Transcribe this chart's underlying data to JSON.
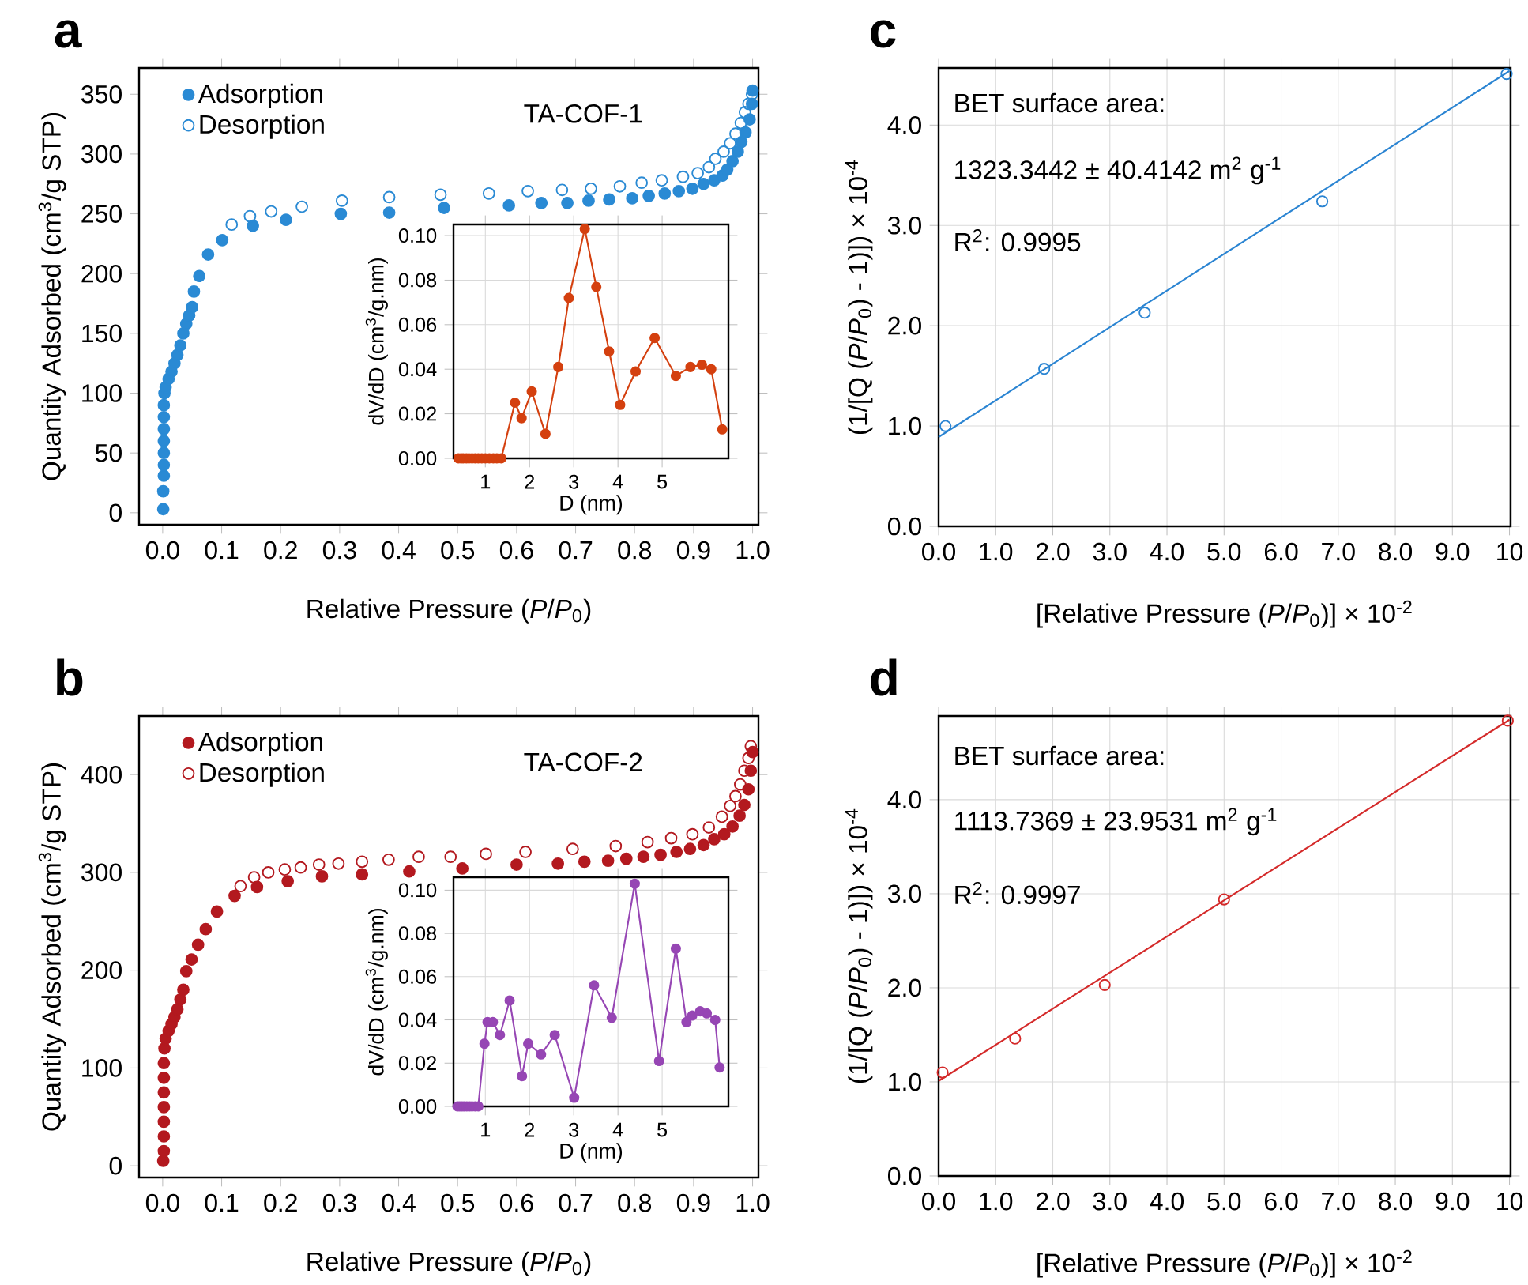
{
  "chart_data": [
    {
      "type": "scatter",
      "title": "a",
      "xlabel": "Relative Pressure (*P*/*P*$_{0}$)",
      "ylabel": "Quantity Adsorbed (cm$^{3}$/g STP)",
      "annotations": [
        "TA-COF-1"
      ],
      "xlim": [
        -0.04,
        1.01
      ],
      "ylim": [
        -10,
        372
      ],
      "xticks": [
        {
          "value": 0,
          "label": "0.0"
        },
        {
          "value": 0.1,
          "label": "0.1"
        },
        {
          "value": 0.2,
          "label": "0.2"
        },
        {
          "value": 0.3,
          "label": "0.3"
        },
        {
          "value": 0.4,
          "label": "0.4"
        },
        {
          "value": 0.5,
          "label": "0.5"
        },
        {
          "value": 0.6,
          "label": "0.6"
        },
        {
          "value": 0.7,
          "label": "0.7"
        },
        {
          "value": 0.8,
          "label": "0.8"
        },
        {
          "value": 0.9,
          "label": "0.9"
        },
        {
          "value": 1,
          "label": "1.0"
        }
      ],
      "yticks": [
        0,
        50,
        100,
        150,
        200,
        250,
        300,
        350
      ],
      "legend": "top left",
      "marker": "circle",
      "series": [
        {
          "name": "Adsorption",
          "color": "#2a8ad4",
          "x": [
            0.001,
            0.001,
            0.002,
            0.002,
            0.002,
            0.002,
            0.002,
            0.002,
            0.002,
            0.003,
            0.005,
            0.01,
            0.015,
            0.02,
            0.025,
            0.03,
            0.035,
            0.04,
            0.045,
            0.05,
            0.053,
            0.062,
            0.077,
            0.101,
            0.153,
            0.209,
            0.302,
            0.384,
            0.477,
            0.587,
            0.642,
            0.686,
            0.722,
            0.757,
            0.796,
            0.824,
            0.851,
            0.875,
            0.898,
            0.917,
            0.935,
            0.949,
            0.957,
            0.966,
            0.975,
            0.981,
            0.988,
            0.995,
            0.999,
            1.0
          ],
          "values": [
            3,
            18,
            31,
            40,
            50,
            60,
            70,
            80,
            90,
            100,
            105,
            112,
            118,
            125,
            132,
            140,
            150,
            158,
            165,
            172,
            185,
            198,
            216,
            228,
            240,
            245,
            250,
            251,
            255,
            257,
            259,
            259,
            261,
            262,
            263,
            265,
            267,
            269,
            271,
            275,
            278,
            282,
            287,
            294,
            302,
            310,
            318,
            329,
            342,
            353
          ]
        },
        {
          "name": "Desorption",
          "color": "#2a8ad4",
          "marker": "open circle",
          "x": [
            0.999,
            0.993,
            0.987,
            0.98,
            0.971,
            0.962,
            0.951,
            0.937,
            0.926,
            0.907,
            0.882,
            0.846,
            0.812,
            0.775,
            0.726,
            0.677,
            0.619,
            0.553,
            0.471,
            0.384,
            0.304,
            0.236,
            0.184,
            0.148,
            0.117
          ],
          "values": [
            350,
            342,
            335,
            326,
            317,
            309,
            302,
            296,
            289,
            284,
            281,
            278,
            276,
            273,
            271,
            270,
            269,
            267,
            266,
            264,
            261,
            256,
            252,
            248,
            241
          ]
        }
      ]
    },
    {
      "type": "line",
      "marker": "circle",
      "line_style": "solid",
      "xlabel": "D (nm)",
      "ylabel": "dV/dD (cm$^{3}$/g.nm)",
      "xlim": [
        0.28,
        6.5
      ],
      "ylim": [
        0,
        0.105
      ],
      "xticks": [
        1,
        2,
        3,
        4,
        5
      ],
      "yticks": [
        {
          "value": 0,
          "label": "0.00"
        },
        {
          "value": 0.02,
          "label": "0.02"
        },
        {
          "value": 0.04,
          "label": "0.04"
        },
        {
          "value": 0.06,
          "label": "0.06"
        },
        {
          "value": 0.08,
          "label": "0.08"
        },
        {
          "value": 0.1,
          "label": "0.10"
        }
      ],
      "grid": true,
      "series": [
        {
          "color": "#d4400f",
          "x": [
            0.39,
            0.45,
            0.5,
            0.57,
            0.63,
            0.7,
            0.77,
            0.84,
            0.92,
            1.0,
            1.09,
            1.18,
            1.26,
            1.36,
            1.67,
            1.82,
            2.05,
            2.36,
            2.65,
            2.89,
            3.25,
            3.51,
            3.8,
            4.05,
            4.4,
            4.83,
            5.31,
            5.64,
            5.9,
            6.11,
            6.36
          ],
          "values": [
            0,
            0,
            0,
            0,
            0,
            0,
            0,
            0,
            0,
            0,
            0,
            0,
            0,
            0,
            0.025,
            0.018,
            0.03,
            0.011,
            0.041,
            0.072,
            0.103,
            0.077,
            0.048,
            0.024,
            0.039,
            0.054,
            0.037,
            0.041,
            0.042,
            0.04,
            0.013
          ]
        }
      ]
    },
    {
      "type": "scatter",
      "title": "c",
      "xlabel": "[Relative Pressure (*P*/*P*$_{0}$)] × 10$^{-2}$",
      "ylabel": "(1/[Q (*P*/*P*$_{0}$) - 1)]) × 10$^{-4}$",
      "annotations": [
        "BET surface area:",
        "1323.3442 ± 40.4142 m$^{2}$ g$^{-1}$",
        "R$^{2}$: 0.9995"
      ],
      "xlim": [
        0,
        10.02
      ],
      "ylim": [
        0,
        4.57
      ],
      "xticks": [
        {
          "value": 0,
          "label": "0.0"
        },
        {
          "value": 1,
          "label": "1.0"
        },
        {
          "value": 2,
          "label": "2.0"
        },
        {
          "value": 3,
          "label": "3.0"
        },
        {
          "value": 4,
          "label": "4.0"
        },
        {
          "value": 5,
          "label": "5.0"
        },
        {
          "value": 6,
          "label": "6.0"
        },
        {
          "value": 7,
          "label": "7.0"
        },
        {
          "value": 8,
          "label": "8.0"
        },
        {
          "value": 9,
          "label": "9.0"
        },
        10
      ],
      "yticks": [
        {
          "value": 0,
          "label": "0.0"
        },
        {
          "value": 1,
          "label": "1.0"
        },
        {
          "value": 2,
          "label": "2.0"
        },
        {
          "value": 3,
          "label": "3.0"
        },
        {
          "value": 4,
          "label": "4.0"
        }
      ],
      "grid": true,
      "marker": "open circle",
      "series": [
        {
          "color": "#2a84d2",
          "x": [
            0.12,
            1.85,
            3.61,
            6.72,
            9.95
          ],
          "values": [
            1.0,
            1.57,
            2.13,
            3.24,
            4.51
          ]
        },
        {
          "type": "line",
          "marker": "none",
          "line_style": "solid",
          "color": "#2a84d2",
          "x": [
            0,
            10
          ],
          "values": [
            0.89,
            4.54
          ]
        }
      ]
    },
    {
      "type": "scatter",
      "title": "b",
      "xlabel": "Relative Pressure (*P*/*P*$_{0}$)",
      "ylabel": "Quantity Adsorbed (cm$^{3}$/g STP)",
      "annotations": [
        "TA-COF-2"
      ],
      "xlim": [
        -0.04,
        1.01
      ],
      "ylim": [
        -12,
        460
      ],
      "xticks": [
        {
          "value": 0,
          "label": "0.0"
        },
        {
          "value": 0.1,
          "label": "0.1"
        },
        {
          "value": 0.2,
          "label": "0.2"
        },
        {
          "value": 0.3,
          "label": "0.3"
        },
        {
          "value": 0.4,
          "label": "0.4"
        },
        {
          "value": 0.5,
          "label": "0.5"
        },
        {
          "value": 0.6,
          "label": "0.6"
        },
        {
          "value": 0.7,
          "label": "0.7"
        },
        {
          "value": 0.8,
          "label": "0.8"
        },
        {
          "value": 0.9,
          "label": "0.9"
        },
        {
          "value": 1,
          "label": "1.0"
        }
      ],
      "yticks": [
        0,
        100,
        200,
        300,
        400
      ],
      "legend": "top left",
      "marker": "circle",
      "series": [
        {
          "name": "Adsorption",
          "color": "#b3191f",
          "x": [
            0.001,
            0.002,
            0.002,
            0.002,
            0.002,
            0.002,
            0.002,
            0.002,
            0.003,
            0.005,
            0.01,
            0.015,
            0.02,
            0.025,
            0.03,
            0.035,
            0.04,
            0.049,
            0.06,
            0.073,
            0.092,
            0.122,
            0.16,
            0.212,
            0.27,
            0.338,
            0.418,
            0.508,
            0.6,
            0.67,
            0.715,
            0.755,
            0.786,
            0.815,
            0.844,
            0.871,
            0.894,
            0.917,
            0.935,
            0.952,
            0.966,
            0.978,
            0.986,
            0.993,
            0.997,
            1.0
          ],
          "values": [
            5,
            15,
            30,
            45,
            60,
            75,
            90,
            105,
            120,
            130,
            138,
            145,
            152,
            160,
            170,
            180,
            199,
            211,
            226,
            242,
            260,
            276,
            285,
            291,
            296,
            298,
            301,
            304,
            308,
            309,
            311,
            312,
            314,
            316,
            318,
            321,
            324,
            328,
            334,
            339,
            347,
            358,
            369,
            385,
            404,
            423
          ]
        },
        {
          "name": "Desorption",
          "color": "#b3191f",
          "marker": "open circle",
          "x": [
            0.997,
            0.993,
            0.986,
            0.979,
            0.971,
            0.962,
            0.948,
            0.926,
            0.898,
            0.862,
            0.822,
            0.768,
            0.695,
            0.615,
            0.548,
            0.488,
            0.434,
            0.383,
            0.338,
            0.298,
            0.265,
            0.234,
            0.207,
            0.179,
            0.155,
            0.132
          ],
          "values": [
            429,
            417,
            404,
            390,
            378,
            368,
            357,
            346,
            339,
            335,
            331,
            327,
            324,
            321,
            319,
            316,
            316,
            313,
            311,
            309,
            308,
            305,
            303,
            300,
            295,
            286
          ]
        }
      ]
    },
    {
      "type": "line",
      "marker": "circle",
      "line_style": "solid",
      "xlabel": "D (nm)",
      "ylabel": "dV/dD (cm$^{3}$/g.nm)",
      "xlim": [
        0.28,
        6.5
      ],
      "ylim": [
        0,
        0.106
      ],
      "xticks": [
        1,
        2,
        3,
        4,
        5
      ],
      "yticks": [
        {
          "value": 0,
          "label": "0.00"
        },
        {
          "value": 0.02,
          "label": "0.02"
        },
        {
          "value": 0.04,
          "label": "0.04"
        },
        {
          "value": 0.06,
          "label": "0.06"
        },
        {
          "value": 0.08,
          "label": "0.08"
        },
        {
          "value": 0.1,
          "label": "0.10"
        }
      ],
      "grid": true,
      "series": [
        {
          "color": "#9646b4",
          "x": [
            0.37,
            0.42,
            0.47,
            0.52,
            0.58,
            0.64,
            0.7,
            0.77,
            0.84,
            0.98,
            1.05,
            1.17,
            1.33,
            1.55,
            1.83,
            1.97,
            2.26,
            2.57,
            3.01,
            3.46,
            3.86,
            4.38,
            4.93,
            5.31,
            5.55,
            5.68,
            5.86,
            6.01,
            6.2,
            6.3
          ],
          "values": [
            0,
            0,
            0,
            0,
            0,
            0,
            0,
            0,
            0,
            0.029,
            0.039,
            0.039,
            0.033,
            0.049,
            0.014,
            0.029,
            0.024,
            0.033,
            0.004,
            0.056,
            0.041,
            0.103,
            0.021,
            0.073,
            0.039,
            0.042,
            0.044,
            0.043,
            0.04,
            0.018
          ]
        }
      ]
    },
    {
      "type": "scatter",
      "title": "d",
      "xlabel": "[Relative Pressure (*P*/*P*$_{0}$)] × 10$^{-2}$",
      "ylabel": "(1/[Q (*P*/*P*$_{0}$) - 1)]) × 10$^{-4}$",
      "annotations": [
        "BET surface area:",
        "1113.7369 ± 23.9531 m$^{2}$ g$^{-1}$",
        "R$^{2}$: 0.9997"
      ],
      "xlim": [
        0,
        10.02
      ],
      "ylim": [
        0,
        4.89
      ],
      "xticks": [
        {
          "value": 0,
          "label": "0.0"
        },
        {
          "value": 1,
          "label": "1.0"
        },
        {
          "value": 2,
          "label": "2.0"
        },
        {
          "value": 3,
          "label": "3.0"
        },
        {
          "value": 4,
          "label": "4.0"
        },
        {
          "value": 5,
          "label": "5.0"
        },
        {
          "value": 6,
          "label": "6.0"
        },
        {
          "value": 7,
          "label": "7.0"
        },
        {
          "value": 8,
          "label": "8.0"
        },
        {
          "value": 9,
          "label": "9.0"
        },
        10
      ],
      "yticks": [
        {
          "value": 0,
          "label": "0.0"
        },
        {
          "value": 1,
          "label": "1.0"
        },
        {
          "value": 2,
          "label": "2.0"
        },
        {
          "value": 3,
          "label": "3.0"
        },
        {
          "value": 4,
          "label": "4.0"
        }
      ],
      "grid": true,
      "marker": "open circle",
      "series": [
        {
          "color": "#d42a2a",
          "x": [
            0.07,
            1.34,
            2.91,
            5.0,
            9.97
          ],
          "values": [
            1.1,
            1.46,
            2.03,
            2.94,
            4.84
          ]
        },
        {
          "type": "line",
          "marker": "none",
          "line_style": "solid",
          "color": "#d42a2a",
          "x": [
            0,
            10
          ],
          "values": [
            1.01,
            4.85
          ]
        }
      ]
    }
  ]
}
